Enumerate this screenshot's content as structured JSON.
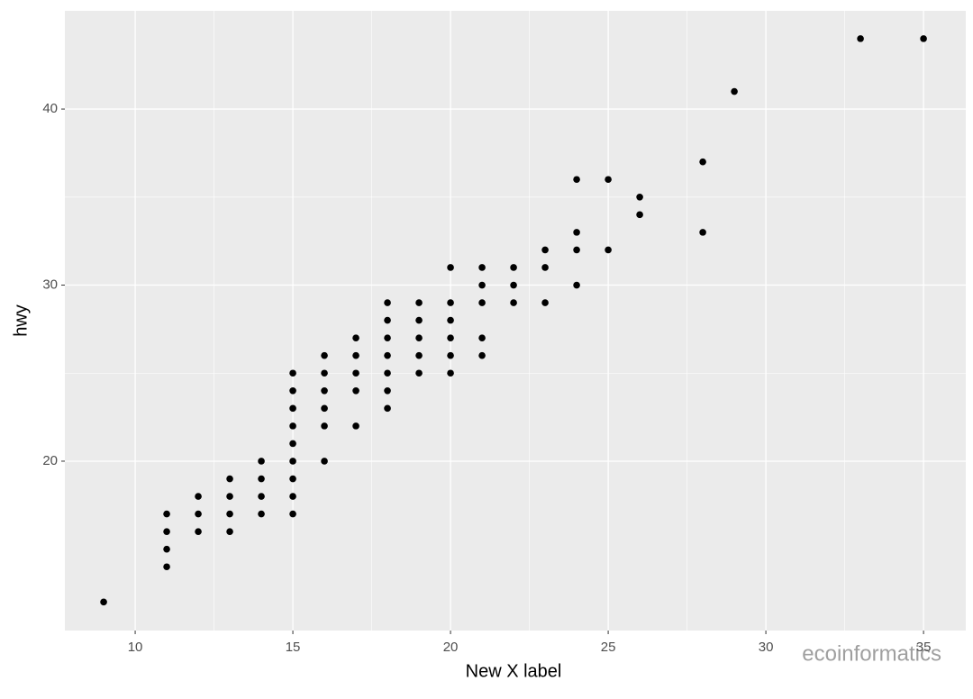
{
  "chart_data": {
    "type": "scatter",
    "x_label": "New X label",
    "y_label": "hwy",
    "watermark": "ecoinformatics",
    "color": "#000000",
    "panel_color": "#ebebeb",
    "grid": true,
    "minor_grid": true,
    "x": [
      9,
      11,
      11,
      11,
      11,
      12,
      12,
      12,
      13,
      13,
      13,
      13,
      14,
      14,
      14,
      14,
      15,
      15,
      15,
      15,
      15,
      15,
      15,
      15,
      15,
      16,
      16,
      16,
      16,
      16,
      16,
      17,
      17,
      17,
      17,
      17,
      18,
      18,
      18,
      18,
      18,
      18,
      18,
      19,
      19,
      19,
      19,
      19,
      20,
      20,
      20,
      20,
      20,
      20,
      21,
      21,
      21,
      21,
      21,
      22,
      22,
      22,
      23,
      23,
      23,
      24,
      24,
      24,
      24,
      25,
      25,
      26,
      26,
      28,
      28,
      29,
      33,
      35
    ],
    "y": [
      12,
      14,
      15,
      16,
      17,
      16,
      17,
      18,
      16,
      17,
      18,
      19,
      17,
      18,
      19,
      20,
      17,
      18,
      19,
      20,
      21,
      22,
      23,
      24,
      25,
      20,
      22,
      23,
      24,
      25,
      26,
      22,
      24,
      25,
      26,
      27,
      23,
      24,
      25,
      26,
      27,
      28,
      29,
      25,
      26,
      27,
      28,
      29,
      25,
      26,
      27,
      28,
      29,
      31,
      26,
      27,
      29,
      30,
      31,
      29,
      30,
      31,
      29,
      31,
      32,
      30,
      32,
      33,
      36,
      32,
      36,
      34,
      35,
      33,
      37,
      41,
      44,
      44
    ],
    "xlim": [
      7.77,
      36.34
    ],
    "ylim": [
      10.38,
      45.58
    ],
    "xticks": [
      10,
      15,
      20,
      25,
      30,
      35
    ],
    "yticks": [
      20,
      30,
      40
    ]
  }
}
